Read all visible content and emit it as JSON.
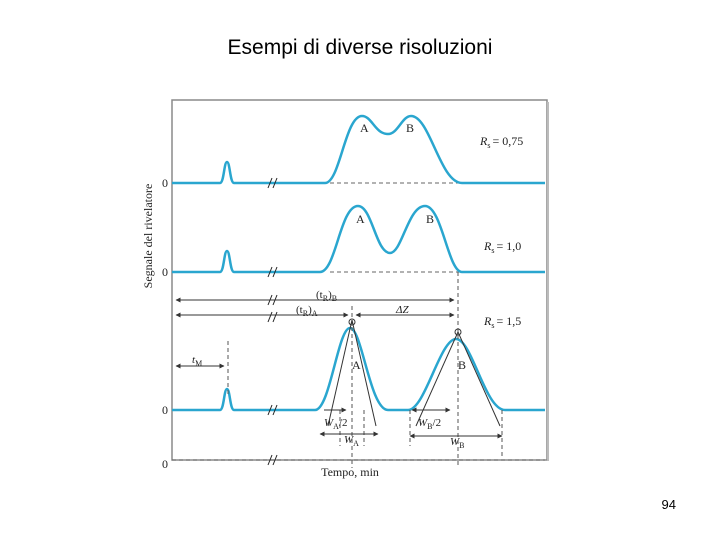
{
  "slide": {
    "title": "Esempi di diverse risoluzioni",
    "page_number": "94"
  },
  "figure": {
    "y_axis_label": "Segnale del rivelatore",
    "x_axis_label": "Tempo, min",
    "zero_label": "0",
    "panels": [
      {
        "peak_a": "A",
        "peak_b": "B",
        "rs_label": "R",
        "rs_sub": "s",
        "rs_value": "= 0,75"
      },
      {
        "peak_a": "A",
        "peak_b": "B",
        "rs_label": "R",
        "rs_sub": "s",
        "rs_value": "= 1,0"
      },
      {
        "peak_a": "A",
        "peak_b": "B",
        "rs_label": "R",
        "rs_sub": "s",
        "rs_value": "= 1,5"
      }
    ],
    "annotations": {
      "tr_b": "(t",
      "tr_b_sub": "R",
      "tr_b_close": ")",
      "tr_b_sub2": "B",
      "tr_a": "(t",
      "tr_a_sub": "R",
      "tr_a_close": ")",
      "tr_a_sub2": "A",
      "delta_z": "ΔZ",
      "tm": "t",
      "tm_sub": "M",
      "wa_half": "W",
      "wa_half_sub": "A",
      "wa_half_tail": "/2",
      "wa": "W",
      "wa_sub": "A",
      "wb_half": "W",
      "wb_half_sub": "B",
      "wb_half_tail": "/2",
      "wb": "W",
      "wb_sub": "B"
    },
    "colors": {
      "trace": "#2aa6cf",
      "guide": "#555555",
      "frame": "#8a8a8a"
    }
  }
}
